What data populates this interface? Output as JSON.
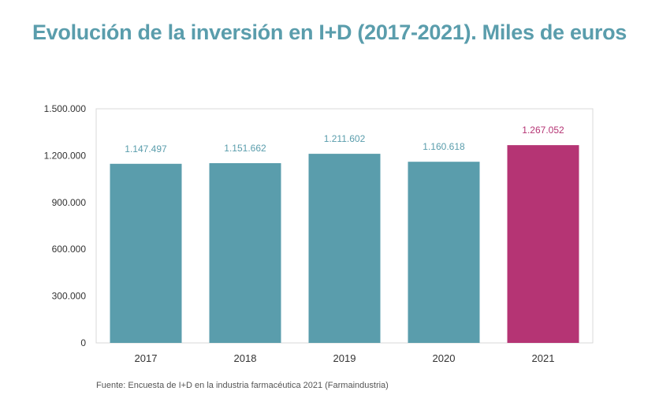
{
  "title": "Evolución de la inversión en I+D (2017-2021). Miles de euros",
  "source": "Fuente: Encuesta de I+D en la industria farmacéutica 2021 (Farmaindustria)",
  "colors": {
    "bar": "#5a9dac",
    "highlight": "#b53474",
    "axis_text": "#333333"
  },
  "chart_data": {
    "type": "bar",
    "categories": [
      "2017",
      "2018",
      "2019",
      "2020",
      "2021"
    ],
    "values": [
      1147497,
      1151662,
      1211602,
      1160618,
      1267052
    ],
    "data_labels": [
      "1.147.497",
      "1.151.662",
      "1.211.602",
      "1.160.618",
      "1.267.052"
    ],
    "highlight_index": 4,
    "ylim": [
      0,
      1500000
    ],
    "yticks": [
      0,
      300000,
      600000,
      900000,
      1200000,
      1500000
    ],
    "ytick_labels": [
      "0",
      "300.000",
      "600.000",
      "900.000",
      "1.200.000",
      "1.500.000"
    ],
    "xlabel": "",
    "ylabel": "",
    "grid": false,
    "legend": "none"
  }
}
